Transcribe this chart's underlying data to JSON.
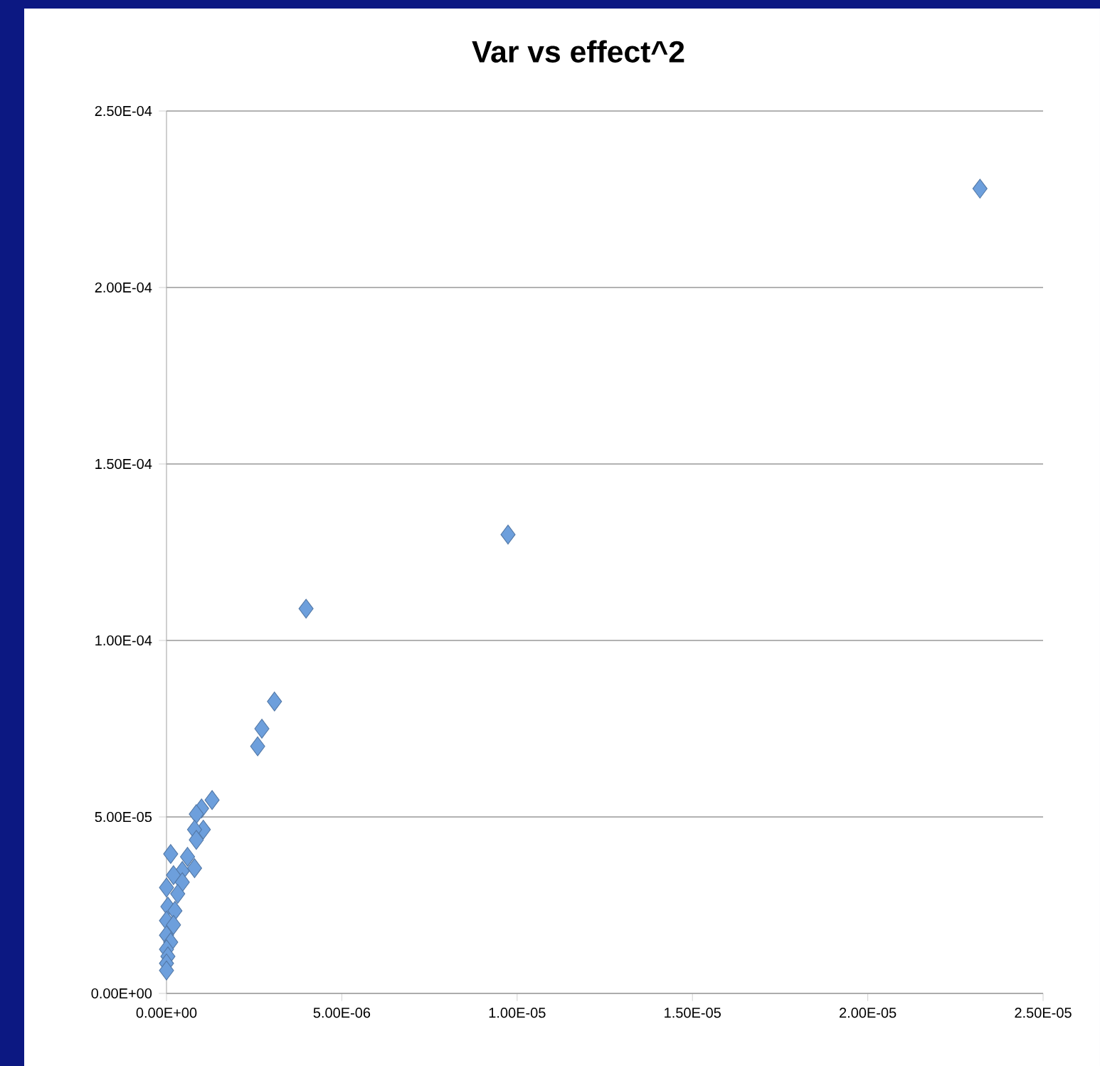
{
  "chart_data": {
    "type": "scatter",
    "title": "Var vs effect^2",
    "marker": "diamond",
    "grid": "y",
    "legend": false,
    "xlim": [
      0,
      2.5e-05
    ],
    "ylim": [
      0,
      0.00025
    ],
    "xticks": [
      {
        "value": 0,
        "label": "0.00E+00"
      },
      {
        "value": 5e-06,
        "label": "5.00E-06"
      },
      {
        "value": 1e-05,
        "label": "1.00E-05"
      },
      {
        "value": 1.5e-05,
        "label": "1.50E-05"
      },
      {
        "value": 2e-05,
        "label": "2.00E-05"
      },
      {
        "value": 2.5e-05,
        "label": "2.50E-05"
      }
    ],
    "yticks": [
      {
        "value": 0,
        "label": "0.00E+00"
      },
      {
        "value": 5e-05,
        "label": "5.00E-05"
      },
      {
        "value": 0.0001,
        "label": "1.00E-04"
      },
      {
        "value": 0.00015,
        "label": "1.50E-04"
      },
      {
        "value": 0.0002,
        "label": "2.00E-04"
      },
      {
        "value": 0.00025,
        "label": "2.50E-04"
      }
    ],
    "series": [
      {
        "color": "#6d9fdc",
        "x": [
          2.32e-05,
          9.74e-06,
          3.98e-06,
          3.08e-06,
          2.72e-06,
          2.6e-06,
          1.3e-06,
          1e-06,
          8.5e-07,
          1.05e-06,
          8e-07,
          8.5e-07,
          1.2e-07,
          6e-07,
          8e-07,
          4.5e-07,
          2e-07,
          4.5e-07,
          0,
          3.2e-07,
          4e-08,
          2.4e-07,
          0,
          2e-07,
          0,
          1.2e-07,
          0,
          4e-08,
          0,
          0
        ],
        "values": [
          0.000228,
          0.00013,
          0.000109,
          8.27e-05,
          7.5e-05,
          7e-05,
          5.48e-05,
          5.24e-05,
          5.08e-05,
          4.64e-05,
          4.64e-05,
          4.35e-05,
          3.95e-05,
          3.87e-05,
          3.55e-05,
          3.47e-05,
          3.35e-05,
          3.15e-05,
          3e-05,
          2.82e-05,
          2.46e-05,
          2.34e-05,
          2.06e-05,
          1.94e-05,
          1.65e-05,
          1.45e-05,
          1.25e-05,
          1.05e-05,
          8.5e-06,
          6.5e-06
        ]
      }
    ]
  }
}
